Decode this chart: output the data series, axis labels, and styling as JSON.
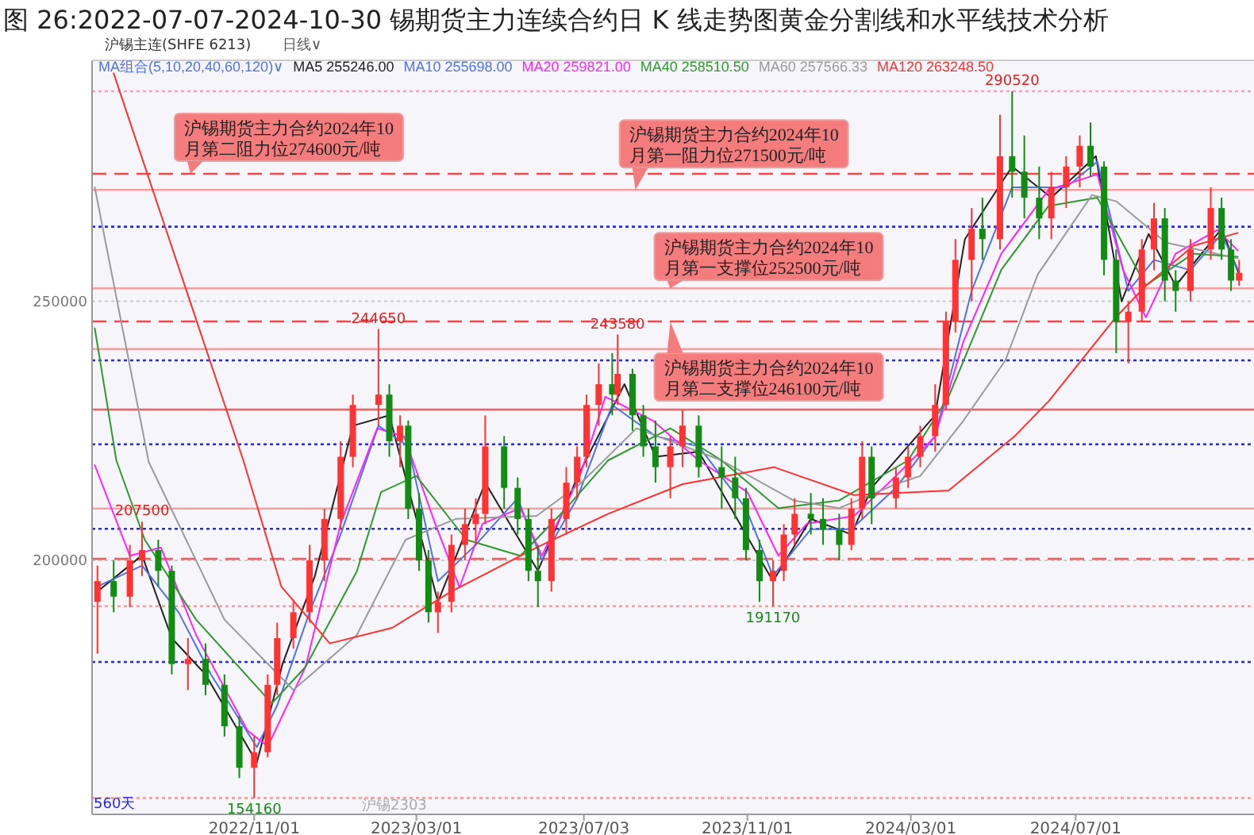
{
  "chart_data": {
    "type": "candlestick",
    "title": "图 26:2022-07-07-2024-10-30 锡期货主力连续合约日 K 线走势图黄金分割线和水平线技术分析",
    "legend_title": "MA组合(5,10,20,40,60,120)∨",
    "legend": "top left",
    "grid": "y",
    "xlim": [
      "2022-07-04",
      "2024-11-10"
    ],
    "ylim": [
      151000,
      296500
    ],
    "xticks": [
      {
        "value": "2022-11-01",
        "label": "2022/11/01"
      },
      {
        "value": "2023-03-01",
        "label": "2023/03/01"
      },
      {
        "value": "2023-07-03",
        "label": "2023/07/03"
      },
      {
        "value": "2023-11-01",
        "label": "2023/11/01"
      },
      {
        "value": "2024-03-01",
        "label": "2024/03/01"
      },
      {
        "value": "2024-07-01",
        "label": "2024/07/01"
      }
    ],
    "yticks": [
      200000,
      250000
    ],
    "x": [
      "2022-07-08",
      "2022-07-20",
      "2022-08-01",
      "2022-08-10",
      "2022-08-22",
      "2022-09-01",
      "2022-09-13",
      "2022-09-26",
      "2022-10-10",
      "2022-10-21",
      "2022-11-01",
      "2022-11-11",
      "2022-11-18",
      "2022-11-30",
      "2022-12-12",
      "2022-12-23",
      "2023-01-04",
      "2023-01-13",
      "2023-02-01",
      "2023-02-09",
      "2023-02-17",
      "2023-02-23",
      "2023-03-03",
      "2023-03-10",
      "2023-03-17",
      "2023-03-27",
      "2023-04-06",
      "2023-04-14",
      "2023-04-21",
      "2023-05-05",
      "2023-05-15",
      "2023-05-23",
      "2023-05-30",
      "2023-06-09",
      "2023-06-20",
      "2023-06-28",
      "2023-07-05",
      "2023-07-14",
      "2023-07-24",
      "2023-07-28",
      "2023-08-08",
      "2023-08-16",
      "2023-08-25",
      "2023-09-05",
      "2023-09-14",
      "2023-09-26",
      "2023-10-13",
      "2023-10-23",
      "2023-10-31",
      "2023-11-10",
      "2023-11-20",
      "2023-11-28",
      "2023-12-06",
      "2023-12-18",
      "2023-12-27",
      "2024-01-08",
      "2024-01-17",
      "2024-01-25",
      "2024-02-01",
      "2024-02-19",
      "2024-02-28",
      "2024-03-08",
      "2024-03-19",
      "2024-03-27",
      "2024-04-03",
      "2024-04-15",
      "2024-04-23",
      "2024-05-06",
      "2024-05-15",
      "2024-05-24",
      "2024-06-04",
      "2024-06-13",
      "2024-06-24",
      "2024-07-04",
      "2024-07-12",
      "2024-07-22",
      "2024-07-31",
      "2024-08-09",
      "2024-08-19",
      "2024-08-28",
      "2024-09-05",
      "2024-09-13",
      "2024-09-24",
      "2024-10-09",
      "2024-10-17",
      "2024-10-24",
      "2024-10-30"
    ],
    "ohlc": [
      [
        192000,
        199000,
        182000,
        196000
      ],
      [
        196000,
        200000,
        190000,
        193000
      ],
      [
        193000,
        203000,
        191000,
        200000
      ],
      [
        200000,
        207500,
        197000,
        202000
      ],
      [
        202000,
        204000,
        195000,
        198000
      ],
      [
        198000,
        199000,
        178000,
        180000
      ],
      [
        180000,
        185000,
        175000,
        181000
      ],
      [
        181000,
        184000,
        174000,
        176000
      ],
      [
        176000,
        178000,
        166000,
        168000
      ],
      [
        168000,
        170000,
        158000,
        160000
      ],
      [
        160000,
        166000,
        154160,
        163000
      ],
      [
        163000,
        178000,
        162000,
        176000
      ],
      [
        176000,
        188000,
        174000,
        185000
      ],
      [
        185000,
        192000,
        183000,
        190000
      ],
      [
        190000,
        203000,
        188000,
        200000
      ],
      [
        200000,
        210000,
        196000,
        208000
      ],
      [
        208000,
        223000,
        206000,
        220000
      ],
      [
        220000,
        232000,
        218000,
        230000
      ],
      [
        230000,
        244650,
        226000,
        232000
      ],
      [
        232000,
        234000,
        220000,
        223000
      ],
      [
        223000,
        228000,
        218000,
        226000
      ],
      [
        226000,
        227000,
        208000,
        210000
      ],
      [
        210000,
        213000,
        198000,
        200000
      ],
      [
        200000,
        202000,
        188000,
        190000
      ],
      [
        190000,
        194000,
        186000,
        192000
      ],
      [
        192000,
        205000,
        190000,
        203000
      ],
      [
        203000,
        210000,
        200000,
        207000
      ],
      [
        207000,
        212000,
        203000,
        209000
      ],
      [
        209000,
        228000,
        207000,
        222000
      ],
      [
        222000,
        224000,
        210000,
        214000
      ],
      [
        214000,
        216000,
        205000,
        208000
      ],
      [
        208000,
        210000,
        196000,
        198000
      ],
      [
        198000,
        203000,
        191000,
        196000
      ],
      [
        196000,
        210000,
        194000,
        208000
      ],
      [
        208000,
        218000,
        205000,
        215000
      ],
      [
        215000,
        222000,
        212000,
        220000
      ],
      [
        220000,
        232000,
        218000,
        230000
      ],
      [
        230000,
        238000,
        226000,
        234000
      ],
      [
        234000,
        240000,
        228000,
        232000
      ],
      [
        232000,
        243580,
        230000,
        236000
      ],
      [
        236000,
        237000,
        225000,
        228000
      ],
      [
        228000,
        230000,
        220000,
        222000
      ],
      [
        222000,
        227000,
        215000,
        218000
      ],
      [
        218000,
        224000,
        212000,
        222000
      ],
      [
        222000,
        229000,
        218000,
        226000
      ],
      [
        226000,
        228000,
        216000,
        218000
      ],
      [
        218000,
        222000,
        210000,
        216000
      ],
      [
        216000,
        220000,
        208000,
        212000
      ],
      [
        212000,
        214000,
        200000,
        202000
      ],
      [
        202000,
        204000,
        192000,
        196000
      ],
      [
        196000,
        200000,
        191170,
        198000
      ],
      [
        198000,
        207000,
        196000,
        205000
      ],
      [
        205000,
        212000,
        203000,
        209000
      ],
      [
        209000,
        213000,
        205000,
        208000
      ],
      [
        208000,
        212000,
        203000,
        206000
      ],
      [
        206000,
        209000,
        200000,
        203000
      ],
      [
        203000,
        212000,
        202000,
        210000
      ],
      [
        210000,
        223000,
        208000,
        220000
      ],
      [
        220000,
        222000,
        207000,
        212000
      ],
      [
        212000,
        218000,
        210000,
        216000
      ],
      [
        216000,
        222000,
        214000,
        220000
      ],
      [
        220000,
        226000,
        218000,
        224000
      ],
      [
        224000,
        234000,
        221000,
        230000
      ],
      [
        230000,
        248000,
        229000,
        246000
      ],
      [
        246000,
        262000,
        244000,
        258000
      ],
      [
        258000,
        268000,
        250000,
        264000
      ],
      [
        264000,
        270000,
        258000,
        262000
      ],
      [
        262000,
        286000,
        260000,
        278000
      ],
      [
        278000,
        290520,
        270000,
        275000
      ],
      [
        275000,
        282000,
        266000,
        270000
      ],
      [
        270000,
        276000,
        262000,
        266000
      ],
      [
        266000,
        275000,
        262000,
        272000
      ],
      [
        272000,
        278000,
        268000,
        276000
      ],
      [
        276000,
        282000,
        272000,
        280000
      ],
      [
        280000,
        284500,
        274000,
        276000
      ],
      [
        276000,
        277000,
        255000,
        258000
      ],
      [
        258000,
        260000,
        240000,
        246000
      ],
      [
        246000,
        250000,
        238000,
        248000
      ],
      [
        248000,
        262000,
        246000,
        260000
      ],
      [
        260000,
        269000,
        256000,
        266000
      ],
      [
        266000,
        268000,
        250000,
        254000
      ],
      [
        254000,
        256000,
        248000,
        252000
      ],
      [
        252000,
        262000,
        250000,
        260000
      ],
      [
        260000,
        272000,
        258000,
        268000
      ],
      [
        268000,
        270000,
        258000,
        260000
      ],
      [
        260000,
        262000,
        252000,
        254000
      ],
      [
        254000,
        258000,
        253000,
        255500
      ]
    ],
    "colors": [
      "#ff3333",
      "#128c12",
      "#ff3333",
      "#ff3333",
      "#128c12",
      "#128c12",
      "#ff3333",
      "#128c12",
      "#128c12",
      "#128c12",
      "#ff3333",
      "#ff3333",
      "#ff3333",
      "#ff3333",
      "#ff3333",
      "#ff3333",
      "#ff3333",
      "#ff3333",
      "#ff3333",
      "#128c12",
      "#ff3333",
      "#128c12",
      "#128c12",
      "#128c12",
      "#ff3333",
      "#ff3333",
      "#ff3333",
      "#ff3333",
      "#ff3333",
      "#128c12",
      "#128c12",
      "#128c12",
      "#128c12",
      "#ff3333",
      "#ff3333",
      "#ff3333",
      "#ff3333",
      "#ff3333",
      "#128c12",
      "#ff3333",
      "#128c12",
      "#128c12",
      "#128c12",
      "#ff3333",
      "#ff3333",
      "#128c12",
      "#128c12",
      "#128c12",
      "#128c12",
      "#128c12",
      "#ff3333",
      "#ff3333",
      "#ff3333",
      "#128c12",
      "#128c12",
      "#128c12",
      "#ff3333",
      "#ff3333",
      "#128c12",
      "#ff3333",
      "#ff3333",
      "#ff3333",
      "#ff3333",
      "#ff3333",
      "#ff3333",
      "#ff3333",
      "#128c12",
      "#ff3333",
      "#128c12",
      "#128c12",
      "#128c12",
      "#ff3333",
      "#ff3333",
      "#ff3333",
      "#128c12",
      "#128c12",
      "#128c12",
      "#ff3333",
      "#ff3333",
      "#ff3333",
      "#128c12",
      "#128c12",
      "#ff3333",
      "#ff3333",
      "#128c12",
      "#128c12",
      "#ff3333"
    ],
    "series": [
      {
        "type": "line",
        "name": "MA5 255246.00",
        "color": "#222222",
        "x": [
          "2022-07-08",
          "2022-08-10",
          "2022-09-01",
          "2022-09-26",
          "2022-11-03",
          "2022-11-22",
          "2022-12-16",
          "2023-01-13",
          "2023-02-09",
          "2023-03-03",
          "2023-03-17",
          "2023-04-21",
          "2023-05-30",
          "2023-06-28",
          "2023-08-02",
          "2023-08-25",
          "2023-09-26",
          "2023-10-31",
          "2023-11-20",
          "2023-12-18",
          "2024-01-17",
          "2024-02-01",
          "2024-03-19",
          "2024-04-10",
          "2024-05-15",
          "2024-06-13",
          "2024-07-16",
          "2024-08-04",
          "2024-08-24",
          "2024-09-13",
          "2024-10-17",
          "2024-10-30"
        ],
        "values": [
          194000,
          201000,
          185000,
          178000,
          161000,
          180000,
          197000,
          226000,
          228000,
          206000,
          192000,
          215000,
          198000,
          216000,
          234000,
          220000,
          221000,
          205000,
          196000,
          208000,
          205000,
          214000,
          228000,
          262000,
          276000,
          270000,
          278000,
          250000,
          263000,
          253000,
          264000,
          255200
        ]
      },
      {
        "type": "line",
        "name": "MA10 255698.00",
        "color": "#4f72e8",
        "x": [
          "2022-07-08",
          "2022-08-10",
          "2022-09-06",
          "2022-09-30",
          "2022-11-03",
          "2022-11-18",
          "2022-12-12",
          "2023-01-04",
          "2023-02-01",
          "2023-02-23",
          "2023-03-17",
          "2023-04-14",
          "2023-05-15",
          "2023-06-02",
          "2023-06-28",
          "2023-07-24",
          "2023-08-25",
          "2023-09-26",
          "2023-10-31",
          "2023-11-20",
          "2023-12-18",
          "2024-01-17",
          "2024-02-19",
          "2024-03-19",
          "2024-04-15",
          "2024-05-15",
          "2024-06-24",
          "2024-07-17",
          "2024-08-09",
          "2024-08-28",
          "2024-09-24",
          "2024-10-17",
          "2024-10-30"
        ],
        "values": [
          195000,
          199000,
          190000,
          178000,
          164000,
          172000,
          190000,
          205000,
          226000,
          222000,
          196000,
          203000,
          212000,
          200000,
          212000,
          230000,
          224000,
          222000,
          210000,
          197000,
          206000,
          206000,
          214000,
          224000,
          252000,
          272000,
          272000,
          277000,
          252000,
          258000,
          256000,
          263000,
          255700
        ]
      },
      {
        "type": "line",
        "name": "MA20 259821.00",
        "color": "#ff22ff",
        "x": [
          "2022-07-06",
          "2022-08-01",
          "2022-08-24",
          "2022-09-19",
          "2022-10-27",
          "2022-11-11",
          "2022-12-09",
          "2023-01-04",
          "2023-01-31",
          "2023-02-20",
          "2023-03-15",
          "2023-04-02",
          "2023-04-19",
          "2023-05-17",
          "2023-06-02",
          "2023-06-30",
          "2023-07-19",
          "2023-08-23",
          "2023-09-26",
          "2023-11-01",
          "2023-11-24",
          "2023-12-15",
          "2024-01-19",
          "2024-02-19",
          "2024-03-19",
          "2024-04-09",
          "2024-05-07",
          "2024-06-11",
          "2024-07-17",
          "2024-08-05",
          "2024-08-22",
          "2024-09-13",
          "2024-10-14",
          "2024-10-29"
        ],
        "values": [
          218400,
          200900,
          202500,
          185600,
          167200,
          164100,
          179500,
          207100,
          225500,
          223900,
          207100,
          194800,
          207100,
          210100,
          200900,
          216300,
          231600,
          227000,
          219300,
          213200,
          200900,
          207100,
          208600,
          216300,
          223900,
          242300,
          259200,
          271500,
          274500,
          256100,
          246900,
          259200,
          263800,
          259800
        ]
      },
      {
        "type": "line",
        "name": "MA40 258510.50",
        "color": "#2e9a2e",
        "x": [
          "2022-07-06",
          "2022-07-22",
          "2022-08-12",
          "2022-09-19",
          "2022-11-14",
          "2022-12-09",
          "2023-01-16",
          "2023-02-03",
          "2023-03-01",
          "2023-04-07",
          "2023-05-17",
          "2023-06-20",
          "2023-07-21",
          "2023-09-05",
          "2023-10-13",
          "2023-11-24",
          "2024-01-08",
          "2024-02-28",
          "2024-03-29",
          "2024-05-07",
          "2024-06-11",
          "2024-07-17",
          "2024-08-22",
          "2024-09-26",
          "2024-10-29"
        ],
        "values": [
          244800,
          219300,
          204000,
          188600,
          172400,
          179500,
          197900,
          213200,
          216300,
          204000,
          200900,
          210100,
          219300,
          225500,
          219300,
          210100,
          211600,
          219300,
          231600,
          256100,
          268400,
          270000,
          253100,
          259200,
          258600
        ]
      },
      {
        "type": "line",
        "name": "MA60 257566.33",
        "color": "#9a9a9a",
        "x": [
          "2022-07-06",
          "2022-08-15",
          "2022-10-10",
          "2022-11-30",
          "2023-01-16",
          "2023-02-21",
          "2023-03-30",
          "2023-05-29",
          "2023-06-30",
          "2023-08-11",
          "2023-10-13",
          "2023-12-05",
          "2024-01-08",
          "2024-02-19",
          "2024-03-08",
          "2024-04-09",
          "2024-05-10",
          "2024-06-03",
          "2024-07-13",
          "2024-07-31",
          "2024-09-06",
          "2024-10-29"
        ],
        "values": [
          272000,
          219000,
          188600,
          175000,
          185600,
          204000,
          208000,
          208600,
          214700,
          225500,
          219300,
          211600,
          210100,
          214700,
          216300,
          227000,
          238600,
          255200,
          270500,
          269300,
          261300,
          258300
        ]
      },
      {
        "type": "line",
        "name": "MA120 263248.50",
        "color": "#ff3030",
        "x": [
          "2022-07-20",
          "2022-10-24",
          "2022-11-21",
          "2022-12-27",
          "2023-02-11",
          "2023-03-27",
          "2023-05-29",
          "2023-07-21",
          "2023-09-14",
          "2023-11-21",
          "2024-01-19",
          "2024-03-29",
          "2024-05-17",
          "2024-06-11",
          "2024-07-31",
          "2024-08-22",
          "2024-09-26",
          "2024-10-29"
        ],
        "values": [
          294000,
          219300,
          195000,
          184000,
          187000,
          194000,
          202500,
          209000,
          214700,
          218000,
          212600,
          213500,
          224000,
          230700,
          247000,
          253000,
          260700,
          263200
        ]
      }
    ],
    "ref_lines": [
      {
        "axis": "y",
        "value": 290520,
        "color": "#f0a0c8",
        "line_style": "dotted"
      },
      {
        "axis": "y",
        "value": 274600,
        "color": "#f04848",
        "line_style": "dashed",
        "label": "沪锡期货主力合约2024年10月第二阻力位274600元/吨"
      },
      {
        "axis": "y",
        "value": 271500,
        "color": "#f5a0a0",
        "line_style": "solid",
        "label": "沪锡期货主力合约2024年10月第一阻力位271500元/吨"
      },
      {
        "axis": "y",
        "value": 264400,
        "color": "#2a2ae0",
        "line_style": "dotted"
      },
      {
        "axis": "y",
        "value": 252500,
        "color": "#f5a0a0",
        "line_style": "solid",
        "label": "沪锡期货主力合约2024年10月第一支撑位252500元/吨"
      },
      {
        "axis": "y",
        "value": 246100,
        "color": "#f04848",
        "line_style": "dashed",
        "label": "沪锡期货主力合约2024年10月第二支撑位246100元/吨"
      },
      {
        "axis": "y",
        "value": 240800,
        "color": "#f5a0a0",
        "line_style": "solid"
      },
      {
        "axis": "y",
        "value": 238600,
        "color": "#2a2ae0",
        "line_style": "dotted"
      },
      {
        "axis": "y",
        "value": 229100,
        "color": "#f06060",
        "line_style": "solid"
      },
      {
        "axis": "y",
        "value": 222400,
        "color": "#2a2ae0",
        "line_style": "dotted"
      },
      {
        "axis": "y",
        "value": 210000,
        "color": "#f5a0a0",
        "line_style": "solid"
      },
      {
        "axis": "y",
        "value": 206100,
        "color": "#2a2ae0",
        "line_style": "dotted"
      },
      {
        "axis": "y",
        "value": 200300,
        "color": "#f06060",
        "line_style": "dashed"
      },
      {
        "axis": "y",
        "value": 191170,
        "color": "#f0a0a0",
        "line_style": "dotted"
      },
      {
        "axis": "y",
        "value": 180400,
        "color": "#2a2ae0",
        "line_style": "dotted"
      },
      {
        "axis": "y",
        "value": 154160,
        "color": "#f0a0a0",
        "line_style": "dotted"
      }
    ],
    "annotations": [
      {
        "text": "290520",
        "x": "2024-05-15",
        "y": 290520
      },
      {
        "text": "244650",
        "x": "2023-02-01",
        "y": 244650
      },
      {
        "text": "243580",
        "x": "2023-07-28",
        "y": 243580
      },
      {
        "text": "207500",
        "x": "2022-08-10",
        "y": 207500
      },
      {
        "text": "191170",
        "x": "2023-11-20",
        "y": 191170
      },
      {
        "text": "154160",
        "x": "2022-11-01",
        "y": 154160
      },
      "沪锡主连(SHFE 6213)",
      "日线∨",
      "560天",
      "沪锡2303"
    ]
  }
}
